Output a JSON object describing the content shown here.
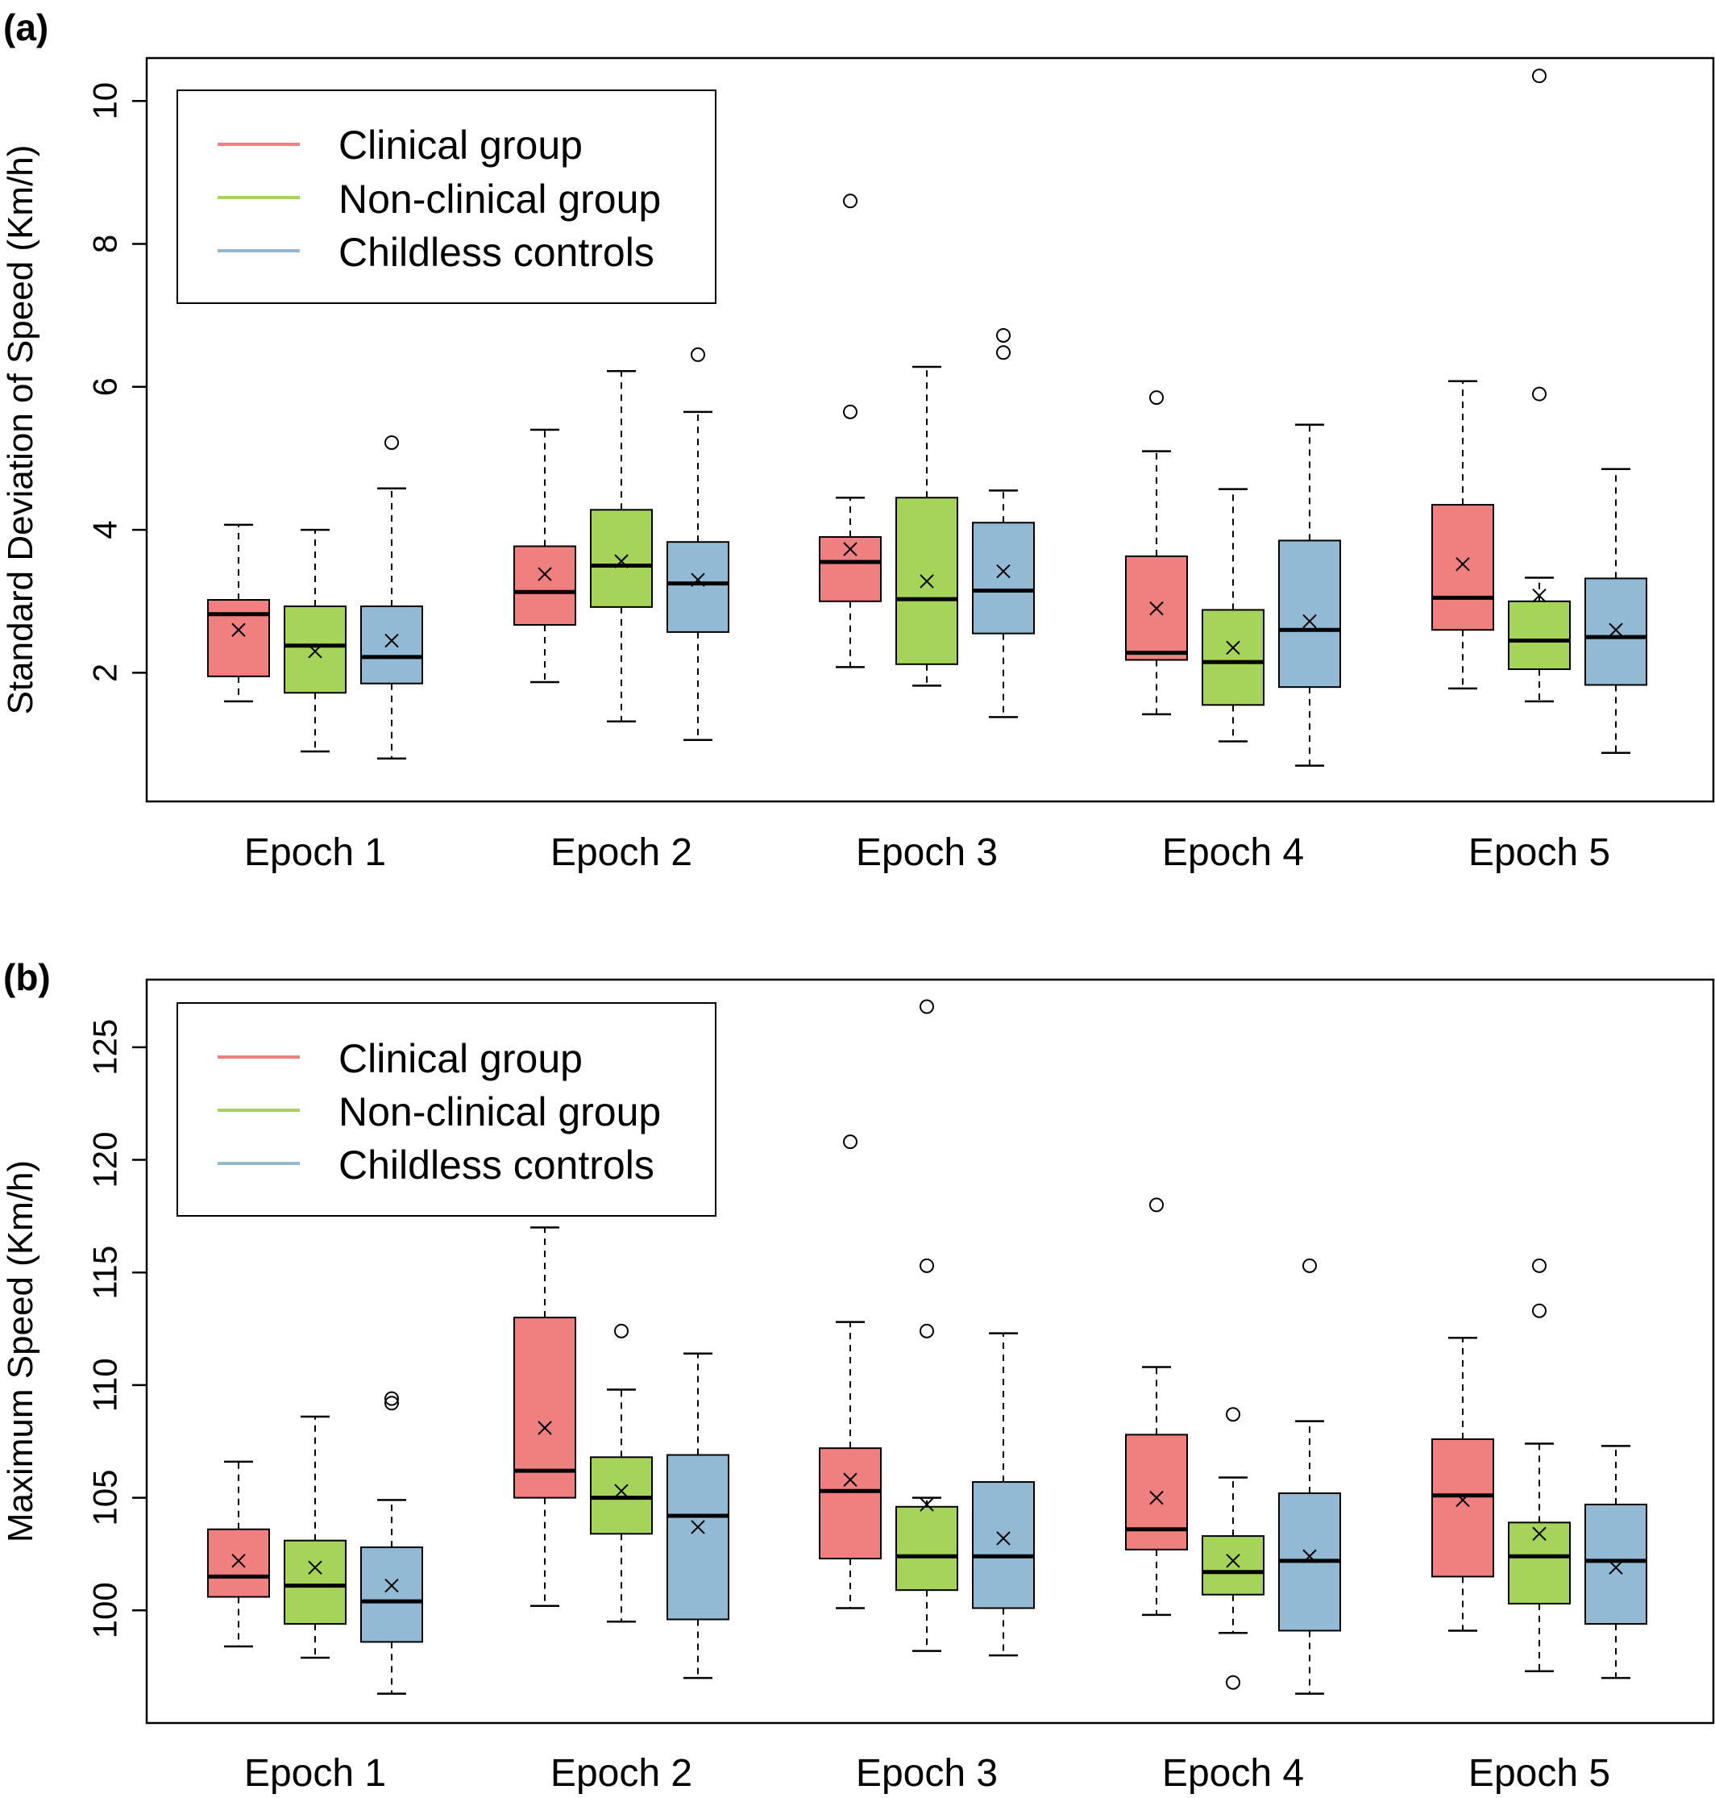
{
  "chart_data": [
    {
      "type": "box",
      "panel_label": "(a)",
      "ylabel": "Standard Deviation of Speed (Km/h)",
      "ylim": [
        0.2,
        10.6
      ],
      "yticks": [
        2,
        4,
        6,
        8,
        10
      ],
      "ytick_labels": [
        "2",
        "4",
        "6",
        "8",
        "10"
      ],
      "categories": [
        "Epoch 1",
        "Epoch 2",
        "Epoch 3",
        "Epoch 4",
        "Epoch 5"
      ],
      "legend": {
        "placement": "top-left"
      },
      "grid": false,
      "series": [
        {
          "name": "Clinical group",
          "color": "#F08080",
          "boxes": [
            {
              "whisker_low": 1.6,
              "q1": 1.95,
              "median": 2.82,
              "q3": 3.02,
              "whisker_high": 4.07,
              "mean": 2.6,
              "outliers": []
            },
            {
              "whisker_low": 1.87,
              "q1": 2.67,
              "median": 3.13,
              "q3": 3.77,
              "whisker_high": 5.4,
              "mean": 3.38,
              "outliers": []
            },
            {
              "whisker_low": 2.08,
              "q1": 3.0,
              "median": 3.55,
              "q3": 3.9,
              "whisker_high": 4.45,
              "mean": 3.73,
              "outliers": [
                5.65,
                8.6
              ]
            },
            {
              "whisker_low": 1.42,
              "q1": 2.18,
              "median": 2.28,
              "q3": 3.63,
              "whisker_high": 5.1,
              "mean": 2.9,
              "outliers": [
                5.85
              ]
            },
            {
              "whisker_low": 1.78,
              "q1": 2.6,
              "median": 3.05,
              "q3": 4.35,
              "whisker_high": 6.08,
              "mean": 3.52,
              "outliers": []
            }
          ]
        },
        {
          "name": "Non-clinical group",
          "color": "#A6D45A",
          "boxes": [
            {
              "whisker_low": 0.9,
              "q1": 1.72,
              "median": 2.38,
              "q3": 2.93,
              "whisker_high": 4.0,
              "mean": 2.3,
              "outliers": []
            },
            {
              "whisker_low": 1.32,
              "q1": 2.92,
              "median": 3.5,
              "q3": 4.28,
              "whisker_high": 6.22,
              "mean": 3.56,
              "outliers": []
            },
            {
              "whisker_low": 1.82,
              "q1": 2.12,
              "median": 3.03,
              "q3": 4.45,
              "whisker_high": 6.28,
              "mean": 3.28,
              "outliers": []
            },
            {
              "whisker_low": 1.04,
              "q1": 1.55,
              "median": 2.15,
              "q3": 2.88,
              "whisker_high": 4.57,
              "mean": 2.35,
              "outliers": []
            },
            {
              "whisker_low": 1.6,
              "q1": 2.05,
              "median": 2.45,
              "q3": 3.0,
              "whisker_high": 3.33,
              "mean": 3.08,
              "outliers": [
                5.9,
                10.35
              ]
            }
          ]
        },
        {
          "name": "Childless controls",
          "color": "#92BAD4",
          "boxes": [
            {
              "whisker_low": 0.8,
              "q1": 1.85,
              "median": 2.22,
              "q3": 2.93,
              "whisker_high": 4.58,
              "mean": 2.45,
              "outliers": [
                5.22
              ]
            },
            {
              "whisker_low": 1.06,
              "q1": 2.57,
              "median": 3.25,
              "q3": 3.83,
              "whisker_high": 5.65,
              "mean": 3.3,
              "outliers": [
                6.45
              ]
            },
            {
              "whisker_low": 1.38,
              "q1": 2.55,
              "median": 3.15,
              "q3": 4.1,
              "whisker_high": 4.55,
              "mean": 3.42,
              "outliers": [
                6.48,
                6.72
              ]
            },
            {
              "whisker_low": 0.7,
              "q1": 1.8,
              "median": 2.6,
              "q3": 3.85,
              "whisker_high": 5.47,
              "mean": 2.72,
              "outliers": []
            },
            {
              "whisker_low": 0.88,
              "q1": 1.83,
              "median": 2.5,
              "q3": 3.32,
              "whisker_high": 4.85,
              "mean": 2.6,
              "outliers": []
            }
          ]
        }
      ]
    },
    {
      "type": "box",
      "panel_label": "(b)",
      "ylabel": "Maximum Speed (Km/h)",
      "ylim": [
        95,
        128
      ],
      "yticks": [
        100,
        105,
        110,
        115,
        120,
        125
      ],
      "ytick_labels": [
        "100",
        "105",
        "110",
        "115",
        "120",
        "125"
      ],
      "categories": [
        "Epoch 1",
        "Epoch 2",
        "Epoch 3",
        "Epoch 4",
        "Epoch 5"
      ],
      "legend": {
        "placement": "top-left"
      },
      "grid": false,
      "series": [
        {
          "name": "Clinical group",
          "color": "#F08080",
          "boxes": [
            {
              "whisker_low": 98.4,
              "q1": 100.6,
              "median": 101.5,
              "q3": 103.6,
              "whisker_high": 106.6,
              "mean": 102.2,
              "outliers": []
            },
            {
              "whisker_low": 100.2,
              "q1": 105.0,
              "median": 106.2,
              "q3": 113.0,
              "whisker_high": 117.0,
              "mean": 108.1,
              "outliers": []
            },
            {
              "whisker_low": 100.1,
              "q1": 102.3,
              "median": 105.3,
              "q3": 107.2,
              "whisker_high": 112.8,
              "mean": 105.8,
              "outliers": [
                120.8
              ]
            },
            {
              "whisker_low": 99.8,
              "q1": 102.7,
              "median": 103.6,
              "q3": 107.8,
              "whisker_high": 110.8,
              "mean": 105.0,
              "outliers": [
                118.0
              ]
            },
            {
              "whisker_low": 99.1,
              "q1": 101.5,
              "median": 105.1,
              "q3": 107.6,
              "whisker_high": 112.1,
              "mean": 104.9,
              "outliers": []
            }
          ]
        },
        {
          "name": "Non-clinical group",
          "color": "#A6D45A",
          "boxes": [
            {
              "whisker_low": 97.9,
              "q1": 99.4,
              "median": 101.1,
              "q3": 103.1,
              "whisker_high": 108.6,
              "mean": 101.9,
              "outliers": []
            },
            {
              "whisker_low": 99.5,
              "q1": 103.4,
              "median": 105.0,
              "q3": 106.8,
              "whisker_high": 109.8,
              "mean": 105.3,
              "outliers": [
                112.4
              ]
            },
            {
              "whisker_low": 98.2,
              "q1": 100.9,
              "median": 102.4,
              "q3": 104.6,
              "whisker_high": 105.0,
              "mean": 104.7,
              "outliers": [
                112.4,
                115.3,
                126.8
              ]
            },
            {
              "whisker_low": 99.0,
              "q1": 100.7,
              "median": 101.7,
              "q3": 103.3,
              "whisker_high": 105.9,
              "mean": 102.2,
              "outliers": [
                96.8,
                108.7
              ]
            },
            {
              "whisker_low": 97.3,
              "q1": 100.3,
              "median": 102.4,
              "q3": 103.9,
              "whisker_high": 107.4,
              "mean": 103.4,
              "outliers": [
                113.3,
                115.3
              ]
            }
          ]
        },
        {
          "name": "Childless controls",
          "color": "#92BAD4",
          "boxes": [
            {
              "whisker_low": 96.3,
              "q1": 98.6,
              "median": 100.4,
              "q3": 102.8,
              "whisker_high": 104.9,
              "mean": 101.1,
              "outliers": [
                109.2,
                109.4
              ]
            },
            {
              "whisker_low": 97.0,
              "q1": 99.6,
              "median": 104.2,
              "q3": 106.9,
              "whisker_high": 111.4,
              "mean": 103.7,
              "outliers": []
            },
            {
              "whisker_low": 98.0,
              "q1": 100.1,
              "median": 102.4,
              "q3": 105.7,
              "whisker_high": 112.3,
              "mean": 103.2,
              "outliers": []
            },
            {
              "whisker_low": 96.3,
              "q1": 99.1,
              "median": 102.2,
              "q3": 105.2,
              "whisker_high": 108.4,
              "mean": 102.4,
              "outliers": [
                115.3
              ]
            },
            {
              "whisker_low": 97.0,
              "q1": 99.4,
              "median": 102.2,
              "q3": 104.7,
              "whisker_high": 107.3,
              "mean": 101.9,
              "outliers": []
            }
          ]
        }
      ]
    }
  ]
}
